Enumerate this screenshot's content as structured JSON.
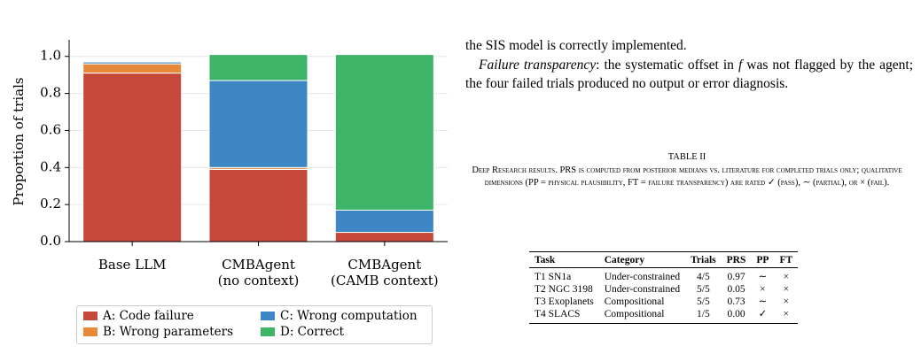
{
  "chart_data": {
    "type": "bar",
    "stacked": true,
    "ylabel": "Proportion of trials",
    "categories": [
      "Base LLM",
      "CMBAgent\n(no context)",
      "CMBAgent\n(CAMB context)"
    ],
    "series": [
      {
        "name": "A: Code failure",
        "color": "#c5493a",
        "values": [
          0.91,
          0.39,
          0.05
        ]
      },
      {
        "name": "B: Wrong parameters",
        "color": "#e8893a",
        "values": [
          0.05,
          0.01,
          0
        ]
      },
      {
        "name": "C: Wrong computation",
        "color": "#3d87c4",
        "values": [
          0.01,
          0.47,
          0.12
        ]
      },
      {
        "name": "D: Correct",
        "color": "#3db468",
        "values": [
          0,
          0.14,
          0.84
        ]
      }
    ],
    "ylim": [
      0,
      1.08
    ],
    "yticks": [
      {
        "value": 0,
        "label": "0.0"
      },
      0.2,
      0.4,
      0.6,
      0.8,
      {
        "value": 1,
        "label": "1.0"
      }
    ],
    "grid": true
  },
  "text": {
    "paragraph1": "the SIS model is correctly implemented.",
    "paragraph2_label": "Failure transparency",
    "paragraph2_a": ": the systematic offset in ",
    "paragraph2_var": "f",
    "paragraph2_b": " was not flagged by the agent; the four failed trials produced no output or error diagnosis."
  },
  "table": {
    "label": "TABLE II",
    "caption": "Deep Research results. PRS is computed from posterior medians vs. literature for completed trials only; qualitative dimensions (PP = physical plausibility, FT = failure transparency) are rated ✓ (pass), ∼ (partial), or × (fail).",
    "header": [
      "Task",
      "Category",
      "Trials",
      "PRS",
      "PP",
      "FT"
    ],
    "rows": [
      [
        "T1 SN1a",
        "Under-constrained",
        "4/5",
        "0.97",
        "∼",
        "×"
      ],
      [
        "T2 NGC 3198",
        "Under-constrained",
        "5/5",
        "0.05",
        "×",
        "×"
      ],
      [
        "T3 Exoplanets",
        "Compositional",
        "5/5",
        "0.73",
        "∼",
        "×"
      ],
      [
        "T4 SLACS",
        "Compositional",
        "1/5",
        "0.00",
        "✓",
        "×"
      ]
    ]
  }
}
